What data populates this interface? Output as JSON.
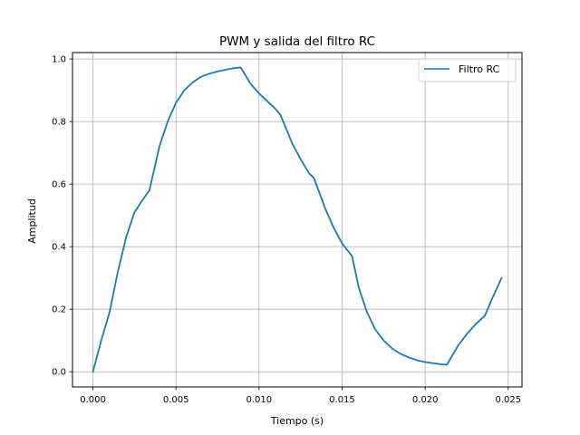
{
  "chart_data": {
    "type": "line",
    "title": "PWM y salida del filtro RC",
    "xlabel": "Tiempo (s)",
    "ylabel": "Amplitud",
    "xlim": [
      -0.00123,
      0.02583
    ],
    "ylim": [
      -0.0486,
      1.0206
    ],
    "xticks": [
      0.0,
      0.005,
      0.01,
      0.015,
      0.02,
      0.025
    ],
    "xtick_labels": [
      "0.000",
      "0.005",
      "0.010",
      "0.015",
      "0.020",
      "0.025"
    ],
    "yticks": [
      0.0,
      0.2,
      0.4,
      0.6,
      0.8,
      1.0
    ],
    "ytick_labels": [
      "0.0",
      "0.2",
      "0.4",
      "0.6",
      "0.8",
      "1.0"
    ],
    "grid": true,
    "legend_position": "top-right",
    "color": "#1f77b4",
    "series": [
      {
        "name": "Filtro RC",
        "color": "#1f77b4",
        "x": [
          0.0,
          0.0005,
          0.001,
          0.0015,
          0.002,
          0.0025,
          0.003,
          0.0034,
          0.004,
          0.0045,
          0.005,
          0.0055,
          0.006,
          0.0065,
          0.007,
          0.0075,
          0.008,
          0.0085,
          0.0089,
          0.0095,
          0.01,
          0.0105,
          0.011,
          0.0113,
          0.012,
          0.0125,
          0.013,
          0.0133,
          0.014,
          0.0145,
          0.015,
          0.0156,
          0.016,
          0.0165,
          0.017,
          0.0175,
          0.018,
          0.0185,
          0.019,
          0.0195,
          0.02,
          0.0205,
          0.0213,
          0.022,
          0.0225,
          0.023,
          0.0236,
          0.024,
          0.0246
        ],
        "y": [
          0.0,
          0.1,
          0.19,
          0.32,
          0.43,
          0.51,
          0.55,
          0.58,
          0.72,
          0.8,
          0.86,
          0.9,
          0.925,
          0.943,
          0.953,
          0.96,
          0.966,
          0.971,
          0.973,
          0.92,
          0.89,
          0.865,
          0.84,
          0.82,
          0.73,
          0.68,
          0.635,
          0.62,
          0.52,
          0.46,
          0.41,
          0.37,
          0.27,
          0.19,
          0.135,
          0.1,
          0.075,
          0.058,
          0.046,
          0.037,
          0.031,
          0.027,
          0.022,
          0.085,
          0.12,
          0.15,
          0.18,
          0.23,
          0.3
        ]
      }
    ]
  }
}
